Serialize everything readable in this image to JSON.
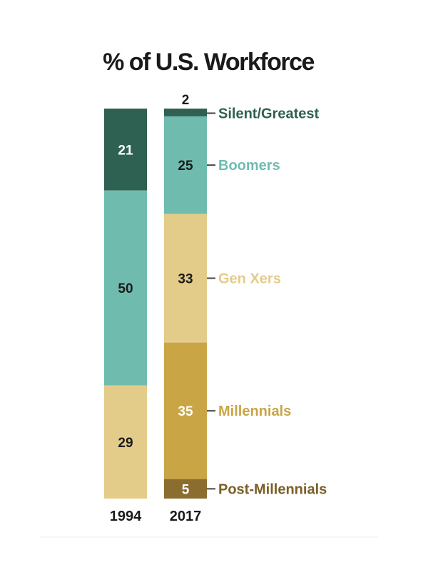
{
  "chart_data": {
    "type": "bar",
    "stacked": true,
    "title": "% of U.S. Workforce",
    "categories": [
      "1994",
      "2017"
    ],
    "series": [
      {
        "name": "Silent/Greatest",
        "values": [
          21,
          2
        ],
        "color": "#2f6152",
        "label_color": "#2f6152"
      },
      {
        "name": "Boomers",
        "values": [
          50,
          25
        ],
        "color": "#6fbcaf",
        "label_color": "#6fbcaf"
      },
      {
        "name": "Gen Xers",
        "values": [
          29,
          33
        ],
        "color": "#e3cc8a",
        "label_color": "#e3cc8a"
      },
      {
        "name": "Millennials",
        "values": [
          null,
          35
        ],
        "color": "#c9a545",
        "label_color": "#c9a545"
      },
      {
        "name": "Post-Millennials",
        "values": [
          null,
          5
        ],
        "color": "#8a6d2f",
        "label_color": "#7a5f26"
      }
    ],
    "data_label_colors": {
      "1994": [
        "#ffffff",
        "#1a1a1a",
        "#1a1a1a"
      ],
      "2017": [
        "#1a1a1a",
        "#1a1a1a",
        "#1a1a1a",
        "#ffffff",
        "#ffffff"
      ]
    },
    "legend": "labels beside 2017 bar, right",
    "ylim": [
      0,
      100
    ]
  }
}
